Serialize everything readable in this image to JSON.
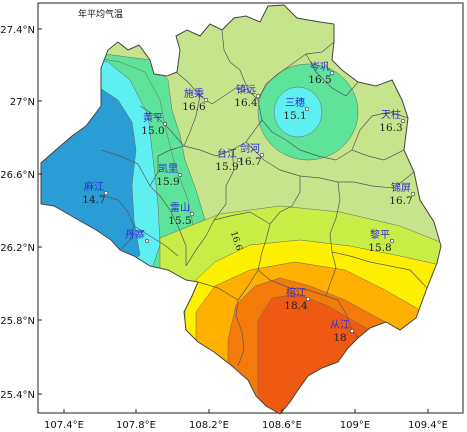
{
  "title": "年平均气温",
  "axes": {
    "x_ticks": [
      "107.4°E",
      "107.8°E",
      "108.2°E",
      "108.6°E",
      "109°E",
      "109.4°E"
    ],
    "y_ticks": [
      "27.4°N",
      "27°N",
      "26.6°N",
      "26.2°N",
      "25.8°N",
      "25.4°N"
    ]
  },
  "colors": {
    "zone_14_5": "#2a9ed4",
    "zone_15": "#5ef0f0",
    "zone_15_5": "#5ee39a",
    "zone_16": "#c6e48b",
    "zone_16_6": "#c8ed46",
    "zone_17": "#ffef00",
    "zone_17_5": "#ffb000",
    "zone_18": "#f47a0a",
    "zone_18_5": "#ee5a12",
    "border": "#444444",
    "city_name": "#2b2bd6"
  },
  "contour_label": "16.6",
  "stations": [
    {
      "name": "岑巩",
      "value": "16.5"
    },
    {
      "name": "施秉",
      "value": "16.6"
    },
    {
      "name": "镇远",
      "value": "16.4"
    },
    {
      "name": "三穗",
      "value": "15.1"
    },
    {
      "name": "天柱",
      "value": "16.3"
    },
    {
      "name": "黄平",
      "value": "15.0"
    },
    {
      "name": "剑河",
      "value": "16.7"
    },
    {
      "name": "台江",
      "value": "15.9"
    },
    {
      "name": "凯里",
      "value": "15.9"
    },
    {
      "name": "锦屏",
      "value": "16.7"
    },
    {
      "name": "麻江",
      "value": "14.7"
    },
    {
      "name": "雷山",
      "value": "15.5"
    },
    {
      "name": "丹寨",
      "value": ""
    },
    {
      "name": "黎平",
      "value": "15.8"
    },
    {
      "name": "榕江",
      "value": "18.4"
    },
    {
      "name": "从江",
      "value": "18"
    }
  ]
}
